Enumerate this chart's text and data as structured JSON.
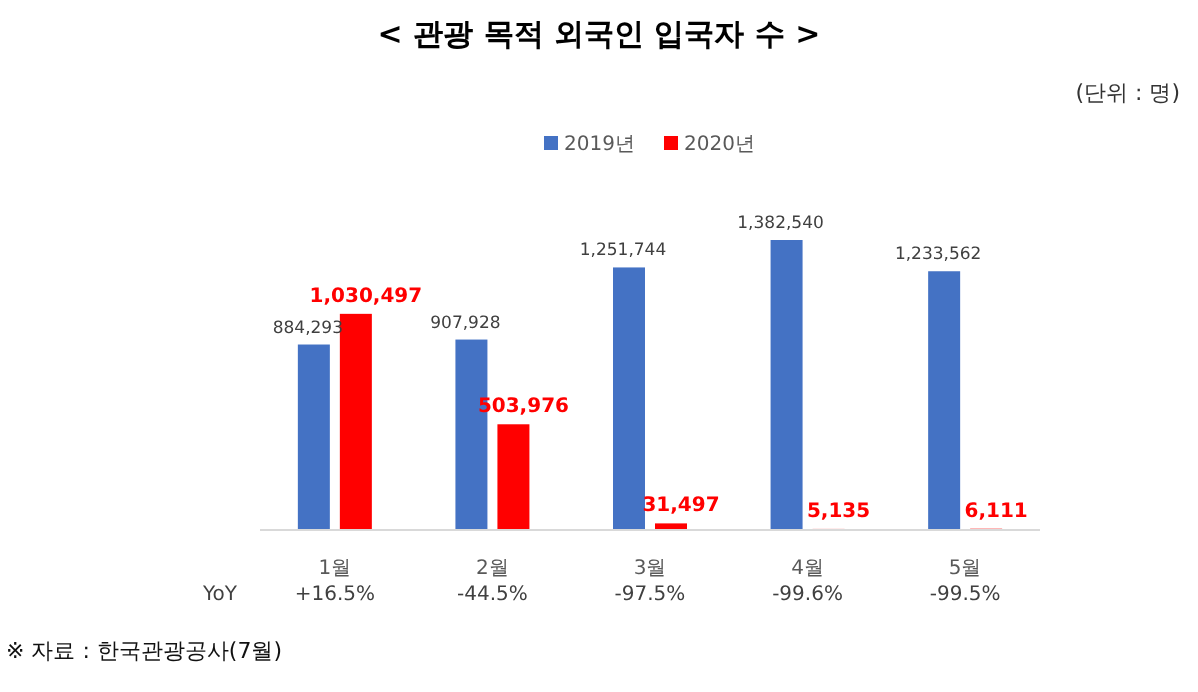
{
  "chart_data": {
    "type": "bar",
    "title": "< 관광 목적 외국인 입국자 수 >",
    "subtitle": "(단위 : 명)",
    "categories": [
      "1월",
      "2월",
      "3월",
      "4월",
      "5월"
    ],
    "series": [
      {
        "name": "2019년",
        "color": "#4472c4",
        "values": [
          884293,
          907928,
          1251744,
          1382540,
          1233562
        ],
        "value_labels": [
          "884,293",
          "907,928",
          "1,251,744",
          "1,382,540",
          "1,233,562"
        ]
      },
      {
        "name": "2020년",
        "color": "#ff0000",
        "values": [
          1030497,
          503976,
          31497,
          5135,
          6111
        ],
        "value_labels": [
          "1,030,497",
          "503,976",
          "31,497",
          "5,135",
          "6,111"
        ]
      }
    ],
    "legend": "top",
    "grid": false,
    "annotations": [
      "YoY",
      "+16.5%",
      "-44.5%",
      "-97.5%",
      "-99.6%",
      "-99.5%",
      "※ 자료 : 한국관광공사(7월)"
    ]
  }
}
